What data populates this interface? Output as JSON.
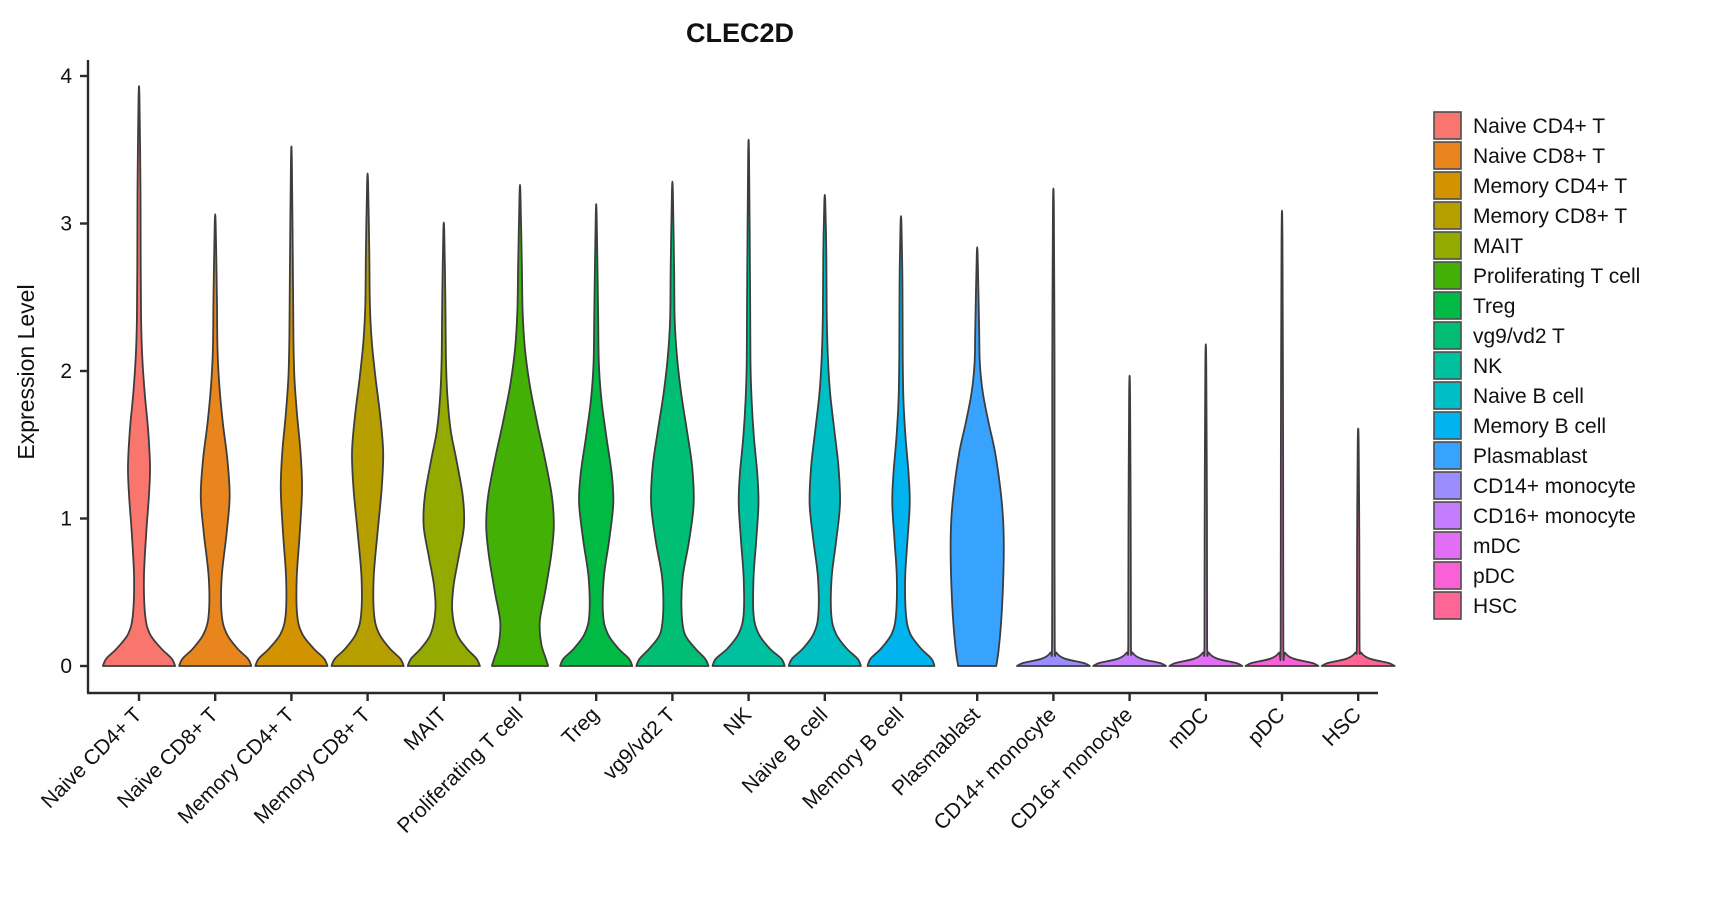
{
  "title": "CLEC2D",
  "axes": {
    "y_label": "Expression Level",
    "y_ticks": [
      "0",
      "1",
      "2",
      "3",
      "4"
    ],
    "y_min": 0,
    "y_max": 4
  },
  "chart_data": {
    "type": "violin",
    "title": "CLEC2D",
    "xlabel": "",
    "ylabel": "Expression Level",
    "ylim": [
      0,
      4
    ],
    "grid": false,
    "legend_position": "right",
    "categories": [
      "Naive CD4+ T",
      "Naive CD8+ T",
      "Memory CD4+ T",
      "Memory CD8+ T",
      "MAIT",
      "Proliferating T cell",
      "Treg",
      "vg9/vd2 T",
      "NK",
      "Naive B cell",
      "Memory B cell",
      "Plasmablast",
      "CD14+ monocyte",
      "CD16+ monocyte",
      "mDC",
      "pDC",
      "HSC"
    ],
    "series": [
      {
        "name": "Naive CD4+ T",
        "color": "#F8766D",
        "max_expression": 3.85,
        "profile": [
          [
            0,
            0.95
          ],
          [
            0.05,
            0.86
          ],
          [
            0.12,
            0.58
          ],
          [
            0.22,
            0.28
          ],
          [
            0.35,
            0.16
          ],
          [
            0.6,
            0.13
          ],
          [
            0.9,
            0.19
          ],
          [
            1.15,
            0.26
          ],
          [
            1.35,
            0.29
          ],
          [
            1.6,
            0.24
          ],
          [
            1.85,
            0.15
          ],
          [
            2.1,
            0.085
          ],
          [
            2.35,
            0.055
          ],
          [
            2.7,
            0.045
          ],
          [
            3.2,
            0.04
          ],
          [
            3.85,
            0.012
          ]
        ]
      },
      {
        "name": "Naive CD8+ T",
        "color": "#E8861D",
        "max_expression": 3.0,
        "profile": [
          [
            0,
            0.95
          ],
          [
            0.05,
            0.86
          ],
          [
            0.12,
            0.58
          ],
          [
            0.22,
            0.3
          ],
          [
            0.35,
            0.17
          ],
          [
            0.6,
            0.17
          ],
          [
            0.9,
            0.3
          ],
          [
            1.15,
            0.38
          ],
          [
            1.4,
            0.32
          ],
          [
            1.65,
            0.2
          ],
          [
            1.9,
            0.11
          ],
          [
            2.15,
            0.06
          ],
          [
            2.5,
            0.045
          ],
          [
            3.0,
            0.012
          ]
        ]
      },
      {
        "name": "Memory CD4+ T",
        "color": "#D39200",
        "max_expression": 3.42,
        "profile": [
          [
            0,
            0.95
          ],
          [
            0.05,
            0.86
          ],
          [
            0.12,
            0.58
          ],
          [
            0.22,
            0.28
          ],
          [
            0.35,
            0.15
          ],
          [
            0.6,
            0.14
          ],
          [
            0.9,
            0.22
          ],
          [
            1.2,
            0.28
          ],
          [
            1.45,
            0.24
          ],
          [
            1.7,
            0.15
          ],
          [
            1.95,
            0.08
          ],
          [
            2.2,
            0.055
          ],
          [
            2.6,
            0.042
          ],
          [
            3.42,
            0.012
          ]
        ]
      },
      {
        "name": "Memory CD8+ T",
        "color": "#B79F00",
        "max_expression": 3.28,
        "profile": [
          [
            0,
            0.95
          ],
          [
            0.05,
            0.86
          ],
          [
            0.12,
            0.58
          ],
          [
            0.22,
            0.3
          ],
          [
            0.35,
            0.17
          ],
          [
            0.6,
            0.16
          ],
          [
            0.9,
            0.26
          ],
          [
            1.2,
            0.37
          ],
          [
            1.45,
            0.41
          ],
          [
            1.7,
            0.33
          ],
          [
            1.95,
            0.21
          ],
          [
            2.2,
            0.11
          ],
          [
            2.45,
            0.06
          ],
          [
            2.8,
            0.045
          ],
          [
            3.28,
            0.012
          ]
        ]
      },
      {
        "name": "MAIT",
        "color": "#93AA00",
        "max_expression": 2.95,
        "profile": [
          [
            0,
            0.95
          ],
          [
            0.05,
            0.86
          ],
          [
            0.12,
            0.6
          ],
          [
            0.22,
            0.34
          ],
          [
            0.38,
            0.22
          ],
          [
            0.55,
            0.26
          ],
          [
            0.75,
            0.4
          ],
          [
            0.95,
            0.53
          ],
          [
            1.15,
            0.5
          ],
          [
            1.4,
            0.33
          ],
          [
            1.6,
            0.18
          ],
          [
            1.85,
            0.09
          ],
          [
            2.1,
            0.055
          ],
          [
            2.5,
            0.04
          ],
          [
            2.95,
            0.012
          ]
        ]
      },
      {
        "name": "Proliferating T cell",
        "color": "#42B005",
        "max_expression": 3.2,
        "profile": [
          [
            0,
            0.74
          ],
          [
            0.05,
            0.68
          ],
          [
            0.15,
            0.56
          ],
          [
            0.3,
            0.52
          ],
          [
            0.5,
            0.66
          ],
          [
            0.75,
            0.82
          ],
          [
            0.95,
            0.89
          ],
          [
            1.15,
            0.84
          ],
          [
            1.4,
            0.66
          ],
          [
            1.65,
            0.45
          ],
          [
            1.9,
            0.26
          ],
          [
            2.15,
            0.13
          ],
          [
            2.4,
            0.07
          ],
          [
            2.7,
            0.05
          ],
          [
            3.2,
            0.012
          ]
        ]
      },
      {
        "name": "Treg",
        "color": "#00BA44",
        "max_expression": 3.05,
        "profile": [
          [
            0,
            0.95
          ],
          [
            0.05,
            0.86
          ],
          [
            0.12,
            0.58
          ],
          [
            0.22,
            0.3
          ],
          [
            0.35,
            0.18
          ],
          [
            0.6,
            0.2
          ],
          [
            0.85,
            0.34
          ],
          [
            1.1,
            0.45
          ],
          [
            1.3,
            0.41
          ],
          [
            1.55,
            0.27
          ],
          [
            1.8,
            0.14
          ],
          [
            2.05,
            0.07
          ],
          [
            2.4,
            0.05
          ],
          [
            3.05,
            0.012
          ]
        ]
      },
      {
        "name": "vg9/vd2 T",
        "color": "#00BF74",
        "max_expression": 3.22,
        "profile": [
          [
            0,
            0.95
          ],
          [
            0.05,
            0.86
          ],
          [
            0.12,
            0.6
          ],
          [
            0.22,
            0.32
          ],
          [
            0.38,
            0.24
          ],
          [
            0.6,
            0.27
          ],
          [
            0.85,
            0.44
          ],
          [
            1.1,
            0.56
          ],
          [
            1.35,
            0.52
          ],
          [
            1.6,
            0.38
          ],
          [
            1.85,
            0.23
          ],
          [
            2.1,
            0.12
          ],
          [
            2.35,
            0.06
          ],
          [
            2.7,
            0.045
          ],
          [
            3.22,
            0.012
          ]
        ]
      },
      {
        "name": "NK",
        "color": "#00C19F",
        "max_expression": 3.45,
        "profile": [
          [
            0,
            0.95
          ],
          [
            0.05,
            0.86
          ],
          [
            0.12,
            0.55
          ],
          [
            0.22,
            0.26
          ],
          [
            0.35,
            0.13
          ],
          [
            0.6,
            0.13
          ],
          [
            0.85,
            0.2
          ],
          [
            1.1,
            0.26
          ],
          [
            1.3,
            0.23
          ],
          [
            1.55,
            0.14
          ],
          [
            1.8,
            0.08
          ],
          [
            2.05,
            0.05
          ],
          [
            2.5,
            0.04
          ],
          [
            3.45,
            0.012
          ]
        ]
      },
      {
        "name": "Naive B cell",
        "color": "#00BFC4",
        "max_expression": 3.15,
        "profile": [
          [
            0,
            0.95
          ],
          [
            0.05,
            0.86
          ],
          [
            0.12,
            0.57
          ],
          [
            0.22,
            0.29
          ],
          [
            0.35,
            0.17
          ],
          [
            0.6,
            0.18
          ],
          [
            0.85,
            0.3
          ],
          [
            1.1,
            0.4
          ],
          [
            1.35,
            0.36
          ],
          [
            1.6,
            0.25
          ],
          [
            1.85,
            0.14
          ],
          [
            2.1,
            0.08
          ],
          [
            2.4,
            0.05
          ],
          [
            2.8,
            0.04
          ],
          [
            3.15,
            0.012
          ]
        ]
      },
      {
        "name": "Memory B cell",
        "color": "#00B4EF",
        "max_expression": 3.0,
        "profile": [
          [
            0,
            0.88
          ],
          [
            0.05,
            0.8
          ],
          [
            0.12,
            0.52
          ],
          [
            0.22,
            0.24
          ],
          [
            0.35,
            0.13
          ],
          [
            0.6,
            0.11
          ],
          [
            0.85,
            0.17
          ],
          [
            1.1,
            0.23
          ],
          [
            1.3,
            0.2
          ],
          [
            1.55,
            0.12
          ],
          [
            1.8,
            0.065
          ],
          [
            2.1,
            0.045
          ],
          [
            2.6,
            0.038
          ],
          [
            3.0,
            0.012
          ]
        ]
      },
      {
        "name": "Plasmablast",
        "color": "#38A2FF",
        "max_expression": 2.78,
        "profile": [
          [
            0,
            0.5
          ],
          [
            0.1,
            0.56
          ],
          [
            0.3,
            0.63
          ],
          [
            0.55,
            0.68
          ],
          [
            0.8,
            0.7
          ],
          [
            1.0,
            0.68
          ],
          [
            1.2,
            0.61
          ],
          [
            1.45,
            0.47
          ],
          [
            1.65,
            0.3
          ],
          [
            1.85,
            0.15
          ],
          [
            2.05,
            0.07
          ],
          [
            2.3,
            0.05
          ],
          [
            2.78,
            0.012
          ]
        ]
      },
      {
        "name": "CD14+ monocyte",
        "color": "#9C8DFF",
        "max_expression": 3.1,
        "profile": [
          [
            0,
            0.96
          ],
          [
            0.02,
            0.8
          ],
          [
            0.05,
            0.3
          ],
          [
            0.09,
            0.08
          ],
          [
            0.15,
            0.035
          ],
          [
            1.0,
            0.03
          ],
          [
            2.0,
            0.03
          ],
          [
            3.1,
            0.012
          ]
        ]
      },
      {
        "name": "CD16+ monocyte",
        "color": "#C57CFF",
        "max_expression": 1.85,
        "profile": [
          [
            0,
            0.96
          ],
          [
            0.02,
            0.8
          ],
          [
            0.05,
            0.3
          ],
          [
            0.09,
            0.08
          ],
          [
            0.15,
            0.035
          ],
          [
            0.9,
            0.03
          ],
          [
            1.85,
            0.012
          ]
        ]
      },
      {
        "name": "mDC",
        "color": "#E36EF6",
        "max_expression": 2.05,
        "profile": [
          [
            0,
            0.96
          ],
          [
            0.02,
            0.8
          ],
          [
            0.05,
            0.3
          ],
          [
            0.09,
            0.08
          ],
          [
            0.15,
            0.035
          ],
          [
            1.0,
            0.03
          ],
          [
            2.05,
            0.012
          ]
        ]
      },
      {
        "name": "pDC",
        "color": "#FB61D7",
        "max_expression": 2.9,
        "profile": [
          [
            0,
            0.96
          ],
          [
            0.02,
            0.8
          ],
          [
            0.05,
            0.3
          ],
          [
            0.09,
            0.08
          ],
          [
            0.15,
            0.035
          ],
          [
            1.4,
            0.03
          ],
          [
            2.9,
            0.012
          ]
        ]
      },
      {
        "name": "HSC",
        "color": "#FF6695",
        "max_expression": 1.52,
        "profile": [
          [
            0,
            0.96
          ],
          [
            0.02,
            0.8
          ],
          [
            0.05,
            0.3
          ],
          [
            0.09,
            0.08
          ],
          [
            0.15,
            0.035
          ],
          [
            0.8,
            0.03
          ],
          [
            1.52,
            0.012
          ]
        ]
      }
    ]
  },
  "legend": {
    "items": [
      {
        "label": "Naive CD4+ T",
        "color": "#F8766D"
      },
      {
        "label": "Naive CD8+ T",
        "color": "#E8861D"
      },
      {
        "label": "Memory CD4+ T",
        "color": "#D39200"
      },
      {
        "label": "Memory CD8+ T",
        "color": "#B79F00"
      },
      {
        "label": "MAIT",
        "color": "#93AA00"
      },
      {
        "label": "Proliferating T cell",
        "color": "#42B005"
      },
      {
        "label": "Treg",
        "color": "#00BA44"
      },
      {
        "label": "vg9/vd2 T",
        "color": "#00BF74"
      },
      {
        "label": "NK",
        "color": "#00C19F"
      },
      {
        "label": "Naive B cell",
        "color": "#00BFC4"
      },
      {
        "label": "Memory B cell",
        "color": "#00B4EF"
      },
      {
        "label": "Plasmablast",
        "color": "#38A2FF"
      },
      {
        "label": "CD14+ monocyte",
        "color": "#9C8DFF"
      },
      {
        "label": "CD16+ monocyte",
        "color": "#C57CFF"
      },
      {
        "label": "mDC",
        "color": "#E36EF6"
      },
      {
        "label": "pDC",
        "color": "#FB61D7"
      },
      {
        "label": "HSC",
        "color": "#FF6695"
      }
    ]
  },
  "style": {
    "outline_color": "#3d3d3d",
    "axis_color": "#2a2a2a",
    "background": "#ffffff"
  }
}
